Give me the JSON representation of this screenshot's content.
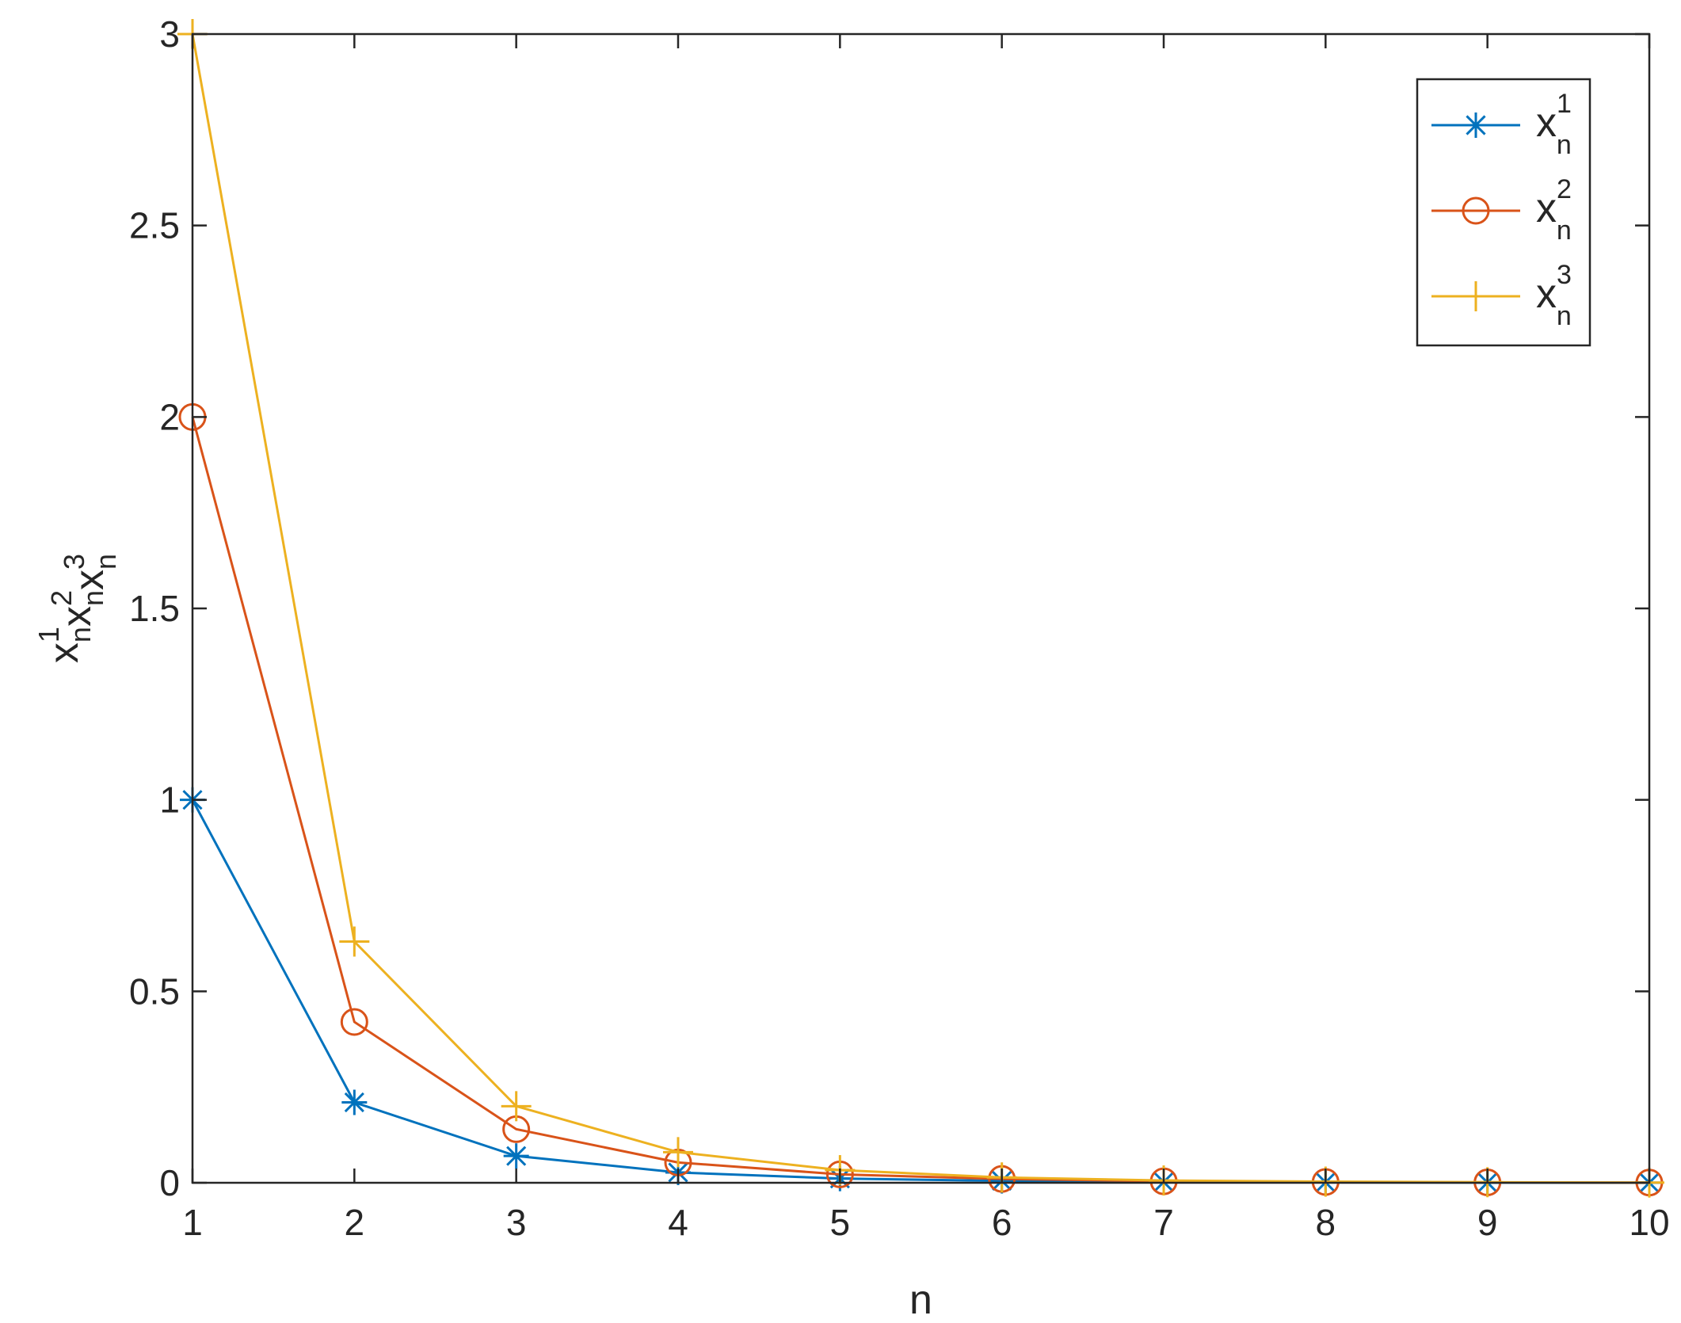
{
  "chart_data": {
    "type": "line",
    "title": "",
    "xlabel": "n",
    "ylabel": {
      "parts": [
        {
          "base": "x",
          "sup": "1",
          "sub": "n"
        },
        {
          "base": "x",
          "sup": "2",
          "sub": "n"
        },
        {
          "base": "x",
          "sup": "3",
          "sub": "n"
        }
      ]
    },
    "xlim": [
      1,
      10
    ],
    "ylim": [
      0,
      3
    ],
    "xticks": [
      "1",
      "2",
      "3",
      "4",
      "5",
      "6",
      "7",
      "8",
      "9",
      "10"
    ],
    "yticks": [
      "0",
      "0.5",
      "1",
      "1.5",
      "2",
      "2.5",
      "3"
    ],
    "grid": false,
    "legend_position": "top-right",
    "x": [
      1,
      2,
      3,
      4,
      5,
      6,
      7,
      8,
      9,
      10
    ],
    "series": [
      {
        "name": {
          "base": "x",
          "sup": "1",
          "sub": "n"
        },
        "marker": "asterisk",
        "color": "#0072BD",
        "values": [
          1.0,
          0.21,
          0.07,
          0.027,
          0.011,
          0.005,
          0.002,
          0.001,
          0.0005,
          0.0002
        ]
      },
      {
        "name": {
          "base": "x",
          "sup": "2",
          "sub": "n"
        },
        "marker": "circle",
        "color": "#D95319",
        "values": [
          2.0,
          0.42,
          0.14,
          0.053,
          0.022,
          0.01,
          0.004,
          0.002,
          0.001,
          0.0004
        ]
      },
      {
        "name": {
          "base": "x",
          "sup": "3",
          "sub": "n"
        },
        "marker": "plus",
        "color": "#EDB120",
        "values": [
          3.0,
          0.63,
          0.2,
          0.08,
          0.033,
          0.014,
          0.006,
          0.003,
          0.0015,
          0.0006
        ]
      }
    ]
  }
}
